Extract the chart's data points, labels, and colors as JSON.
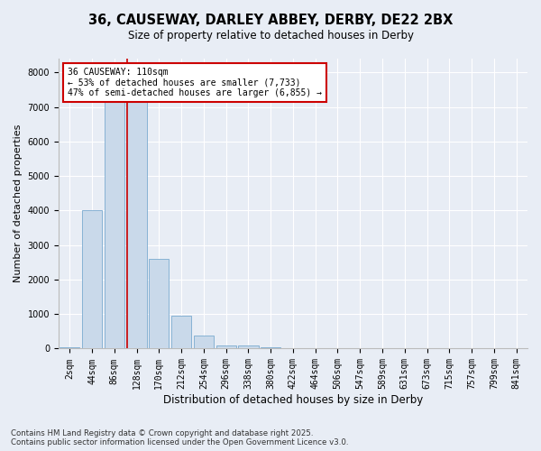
{
  "title_line1": "36, CAUSEWAY, DARLEY ABBEY, DERBY, DE22 2BX",
  "title_line2": "Size of property relative to detached houses in Derby",
  "xlabel": "Distribution of detached houses by size in Derby",
  "ylabel": "Number of detached properties",
  "categories": [
    "2sqm",
    "44sqm",
    "86sqm",
    "128sqm",
    "170sqm",
    "212sqm",
    "254sqm",
    "296sqm",
    "338sqm",
    "380sqm",
    "422sqm",
    "464sqm",
    "506sqm",
    "547sqm",
    "589sqm",
    "631sqm",
    "673sqm",
    "715sqm",
    "757sqm",
    "799sqm",
    "841sqm"
  ],
  "values": [
    30,
    4000,
    7350,
    7350,
    2600,
    950,
    380,
    100,
    100,
    50,
    0,
    0,
    0,
    0,
    0,
    0,
    0,
    0,
    0,
    0,
    0
  ],
  "bar_color": "#c9d9ea",
  "bar_edge_color": "#7aaacf",
  "vline_color": "#cc0000",
  "vline_x": 2.57,
  "annotation_title": "36 CAUSEWAY: 110sqm",
  "annotation_line1": "← 53% of detached houses are smaller (7,733)",
  "annotation_line2": "47% of semi-detached houses are larger (6,855) →",
  "annotation_box_edgecolor": "#cc0000",
  "ylim": [
    0,
    8400
  ],
  "yticks": [
    0,
    1000,
    2000,
    3000,
    4000,
    5000,
    6000,
    7000,
    8000
  ],
  "footnote_line1": "Contains HM Land Registry data © Crown copyright and database right 2025.",
  "footnote_line2": "Contains public sector information licensed under the Open Government Licence v3.0.",
  "bg_color": "#e8edf5",
  "plot_bg_color": "#e8edf5",
  "title_fontsize": 10.5,
  "subtitle_fontsize": 8.5,
  "ylabel_fontsize": 8,
  "xlabel_fontsize": 8.5,
  "tick_fontsize": 7,
  "footnote_fontsize": 6.2
}
